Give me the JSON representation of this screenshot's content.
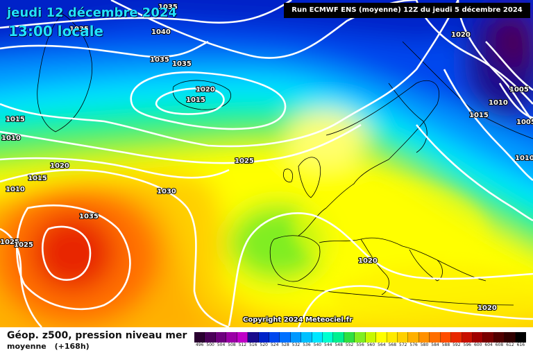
{
  "header": {
    "date": "jeudi 12 décembre 2024",
    "time": "13:00 locale",
    "run_info": "Run ECMWF ENS (moyenne) 12Z du jeudi 5 décembre 2024"
  },
  "copyright": "Copyright 2024 Meteociel.fr",
  "footer": {
    "title": "Géop. z500, pression niveau mer",
    "subtitle": "moyenne",
    "lead": "(+168h)"
  },
  "legend": {
    "values": [
      "496",
      "500",
      "504",
      "508",
      "512",
      "516",
      "520",
      "524",
      "528",
      "532",
      "536",
      "540",
      "544",
      "548",
      "552",
      "556",
      "560",
      "564",
      "568",
      "572",
      "576",
      "580",
      "584",
      "588",
      "592",
      "596",
      "600",
      "604",
      "608",
      "612",
      "616"
    ],
    "colors": [
      "#2a0030",
      "#4a0058",
      "#6e007e",
      "#9a00a6",
      "#c000c8",
      "#1a0a8c",
      "#0022c8",
      "#0046ee",
      "#0070ff",
      "#0098ff",
      "#00c0ff",
      "#00e6ff",
      "#00ffd0",
      "#00f090",
      "#30e040",
      "#80ee20",
      "#c8f800",
      "#ffff00",
      "#ffea00",
      "#ffd000",
      "#ffb000",
      "#ff9000",
      "#ff6e00",
      "#ff4c00",
      "#e82800",
      "#c81000",
      "#a00000",
      "#780000",
      "#500000",
      "#300000",
      "#000000"
    ]
  },
  "isobars": [
    {
      "value": "1035"
    },
    {
      "value": "1035"
    },
    {
      "value": "1040"
    },
    {
      "value": "1035"
    },
    {
      "value": "1035"
    },
    {
      "value": "1020"
    },
    {
      "value": "1015"
    },
    {
      "value": "1015"
    },
    {
      "value": "1010"
    },
    {
      "value": "1020"
    },
    {
      "value": "1015"
    },
    {
      "value": "1010"
    },
    {
      "value": "1025"
    },
    {
      "value": "1030"
    },
    {
      "value": "1035"
    },
    {
      "value": "1025"
    },
    {
      "value": "1025"
    },
    {
      "value": "1020"
    },
    {
      "value": "1020"
    },
    {
      "value": "1020"
    },
    {
      "value": "1015"
    },
    {
      "value": "1010"
    },
    {
      "value": "1005"
    },
    {
      "value": "1005"
    },
    {
      "value": "1010"
    }
  ]
}
